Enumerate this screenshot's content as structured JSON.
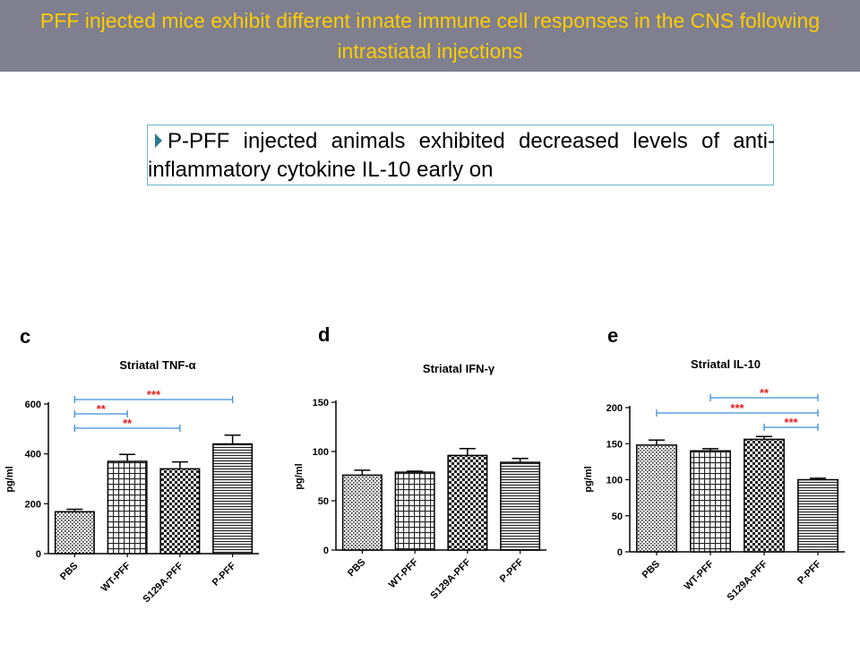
{
  "slide": {
    "title": "PFF injected mice exhibit different innate immune cell responses in the CNS following intrastiatal injections",
    "bullet": "P-PFF injected animals exhibited decreased levels of anti-inflammatory cytokine IL-10 early on",
    "colors": {
      "title_bg": "#7f7f8f",
      "title_text": "#ffcc00",
      "sig_bracket": "#3a8fd9",
      "sig_star": "#e02020"
    }
  },
  "chart_data": [
    {
      "type": "bar",
      "panel_label": "c",
      "title": "Striatal TNF-α",
      "ylabel": "pg/ml",
      "categories": [
        "PBS",
        "WT-PFF",
        "S129A-PFF",
        "P-PFF"
      ],
      "values": [
        168,
        370,
        340,
        440
      ],
      "errors": [
        10,
        28,
        28,
        35
      ],
      "ylim": [
        0,
        600
      ],
      "yticks": [
        0,
        200,
        400,
        600
      ],
      "patterns": [
        "dots",
        "grid",
        "checker",
        "hlines"
      ],
      "significance": [
        {
          "from": 0,
          "to": 3,
          "label": "***"
        },
        {
          "from": 0,
          "to": 1,
          "label": "**"
        },
        {
          "from": 0,
          "to": 2,
          "label": "**"
        }
      ]
    },
    {
      "type": "bar",
      "panel_label": "d",
      "title": "Striatal IFN-γ",
      "ylabel": "pg/ml",
      "categories": [
        "PBS",
        "WT-PFF",
        "S129A-PFF",
        "P-PFF"
      ],
      "values": [
        76,
        79,
        96,
        89
      ],
      "errors": [
        5,
        1,
        7,
        4
      ],
      "ylim": [
        0,
        150
      ],
      "yticks": [
        0,
        50,
        100,
        150
      ],
      "patterns": [
        "dots",
        "grid",
        "checker",
        "hlines"
      ],
      "significance": []
    },
    {
      "type": "bar",
      "panel_label": "e",
      "title": "Striatal IL-10",
      "ylabel": "pg/ml",
      "categories": [
        "PBS",
        "WT-PFF",
        "S129A-PFF",
        "P-PFF"
      ],
      "values": [
        148,
        140,
        156,
        100
      ],
      "errors": [
        7,
        3,
        4,
        2
      ],
      "ylim": [
        0,
        200
      ],
      "yticks": [
        0,
        50,
        100,
        150,
        200
      ],
      "patterns": [
        "dots",
        "grid",
        "checker",
        "hlines"
      ],
      "significance": [
        {
          "from": 1,
          "to": 3,
          "label": "**"
        },
        {
          "from": 0,
          "to": 3,
          "label": "***"
        },
        {
          "from": 2,
          "to": 3,
          "label": "***"
        }
      ]
    }
  ]
}
